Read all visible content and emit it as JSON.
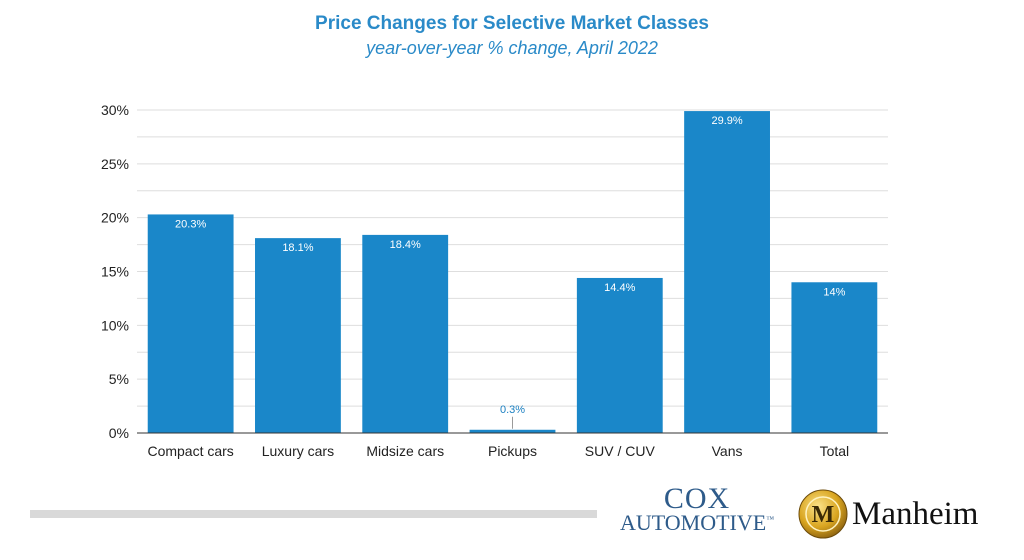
{
  "chart_data": {
    "type": "bar",
    "title": "Price Changes for Selective Market Classes",
    "subtitle": "year-over-year % change, April 2022",
    "categories": [
      "Compact cars",
      "Luxury cars",
      "Midsize cars",
      "Pickups",
      "SUV / CUV",
      "Vans",
      "Total"
    ],
    "values": [
      20.3,
      18.1,
      18.4,
      0.3,
      14.4,
      29.9,
      14
    ],
    "data_labels": [
      "20.3%",
      "18.1%",
      "18.4%",
      "0.3%",
      "14.4%",
      "29.9%",
      "14%"
    ],
    "ylim": [
      0,
      30
    ],
    "yticks": [
      0,
      5,
      10,
      15,
      20,
      25,
      30
    ],
    "ytick_labels": [
      "0%",
      "5%",
      "10%",
      "15%",
      "20%",
      "25%",
      "30%"
    ],
    "xlabel": "",
    "ylabel": "",
    "grid": true,
    "bar_color": "#1a87c9"
  },
  "footer": {
    "cox_line1": "COX",
    "cox_line2": "AUTOMOTIVE",
    "cox_tm": "™",
    "manheim": "Manheim",
    "manheim_seal_letter": "M"
  }
}
